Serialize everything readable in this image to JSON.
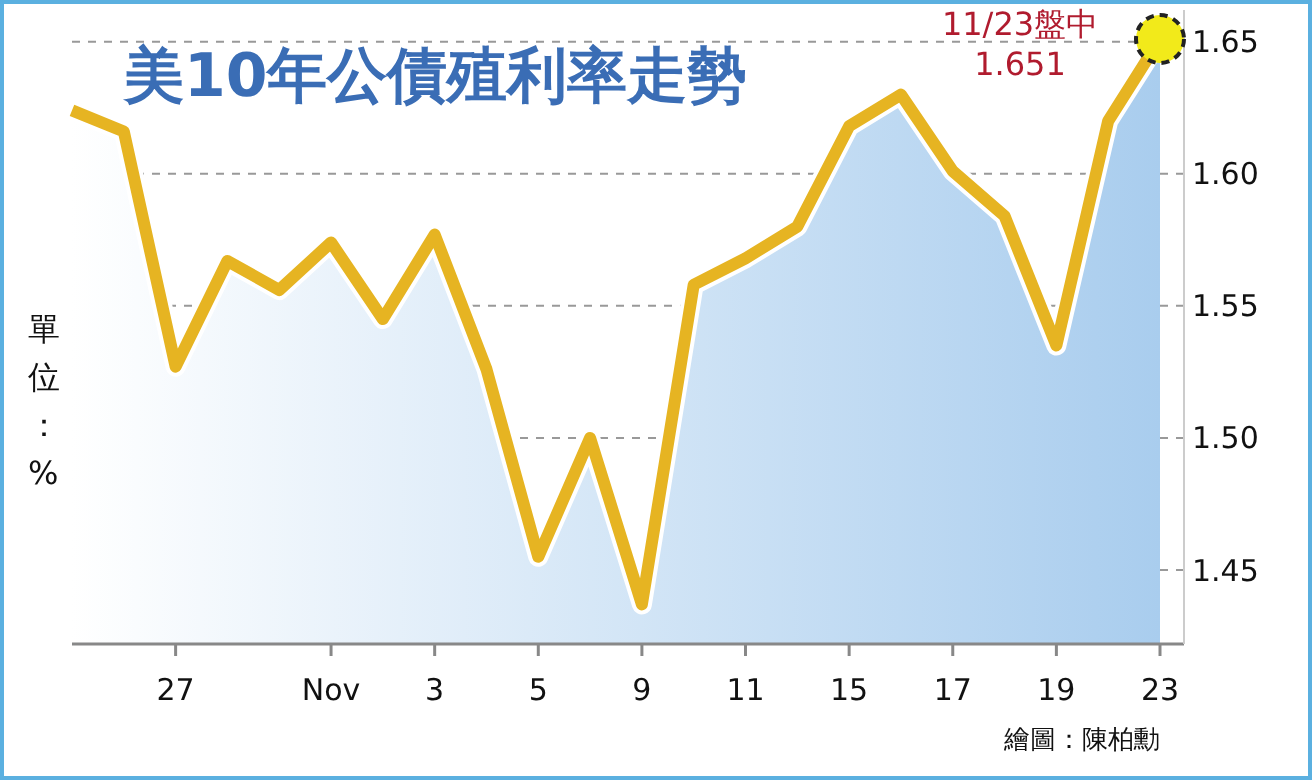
{
  "chart_data": {
    "type": "area",
    "title": "美10年公債殖利率走勢",
    "ylabel": "單位：%",
    "categories": [
      null,
      null,
      "27",
      null,
      null,
      "Nov",
      null,
      "3",
      null,
      "5",
      null,
      "9",
      null,
      "11",
      null,
      "15",
      null,
      "17",
      null,
      "19",
      null,
      "23"
    ],
    "series": [
      {
        "color": "#e6b422",
        "values": [
          1.624,
          1.616,
          1.527,
          1.567,
          1.556,
          1.574,
          1.545,
          1.577,
          1.526,
          1.455,
          1.5,
          1.437,
          1.558,
          1.568,
          1.58,
          1.618,
          1.63,
          1.601,
          1.584,
          1.535,
          1.62,
          1.651
        ]
      }
    ],
    "ylim": [
      1.422,
      1.662
    ],
    "yticks": [
      1.45,
      {
        "value": 1.5,
        "label": "1.50"
      },
      1.55,
      {
        "value": 1.6,
        "label": "1.60"
      },
      1.65
    ],
    "grid": "y",
    "annotations": [
      {
        "text": "11/23盤中\n1.651",
        "x": "23",
        "y": 1.651
      },
      "繪圖：陳柏勳"
    ]
  }
}
